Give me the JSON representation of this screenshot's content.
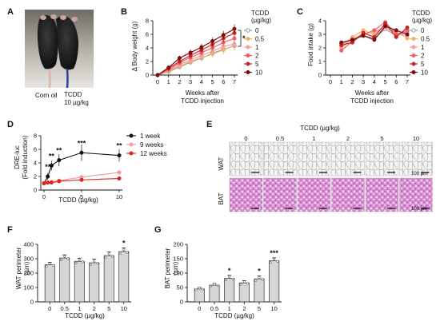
{
  "figure": {
    "colors": {
      "series_0": "#999999",
      "series_0_5": "#f2b16b",
      "series_1": "#f2a0a6",
      "series_2": "#f05f67",
      "series_5": "#c9251f",
      "series_10": "#7a0d12",
      "week1": "#111111",
      "week9": "#f29aa0",
      "week12": "#e2231a",
      "bar_fill": "#d6d6d6",
      "he_pink": "#d38ad0",
      "he_purple": "#6c2f8f"
    },
    "A": {
      "label": "A",
      "caption_left": "Corn oil",
      "caption_right_1": "TCDD",
      "caption_right_2": "10 µg/kg"
    },
    "B": {
      "label": "B",
      "ylabel": "Δ Body weight (g)",
      "xlabel_1": "Weeks after",
      "xlabel_2": "TCDD injection",
      "legend_title_1": "TCDD",
      "legend_title_2": "(µg/kg)",
      "star": "*"
    },
    "C": {
      "label": "C",
      "ylabel": "Food intake (g)",
      "xlabel_1": "Weeks after",
      "xlabel_2": "TCDD injection",
      "legend_title_1": "TCDD",
      "legend_title_2": "(µg/kg)"
    },
    "D": {
      "label": "D",
      "ylabel_1": "DRE-luc",
      "ylabel_2": "(Fold induction)",
      "xlabel": "TCDD (µg/kg)"
    },
    "E": {
      "label": "E",
      "header": "TCDD (µg/kg)",
      "doses": [
        "0",
        "0.5",
        "1",
        "2",
        "5",
        "10"
      ],
      "row_wat": "WAT",
      "row_bat": "BAT",
      "scale_wat": "100 µm",
      "scale_bat": "100 µm"
    },
    "F": {
      "label": "F",
      "ylabel_1": "WAT perimeter",
      "ylabel_2": "(µm)",
      "xlabel": "TCDD (µg/kg)"
    },
    "G": {
      "label": "G",
      "ylabel_1": "BAT perimeter",
      "ylabel_2": "(µm)",
      "xlabel": "TCDD (µg/kg)"
    }
  },
  "chart_data": [
    {
      "panel": "B",
      "type": "line",
      "x": [
        0,
        1,
        2,
        3,
        4,
        5,
        6,
        7
      ],
      "xticks": [
        "0",
        "1",
        "2",
        "3",
        "4",
        "5",
        "6",
        "7"
      ],
      "ylim": [
        0,
        8
      ],
      "yticks": [
        0,
        2,
        4,
        6,
        8
      ],
      "legend_placement": "right",
      "series": [
        {
          "name": "0",
          "color_key": "series_0",
          "values": [
            0,
            0.5,
            1.2,
            1.9,
            2.5,
            3.2,
            3.8,
            4.3
          ]
        },
        {
          "name": "0.5",
          "color_key": "series_0_5",
          "values": [
            0,
            0.6,
            1.3,
            2.0,
            2.6,
            3.1,
            3.7,
            4.4
          ]
        },
        {
          "name": "1",
          "color_key": "series_1",
          "values": [
            0,
            0.7,
            1.5,
            2.2,
            2.9,
            3.5,
            4.2,
            4.6
          ]
        },
        {
          "name": "2",
          "color_key": "series_2",
          "values": [
            0,
            0.8,
            1.8,
            2.6,
            3.3,
            4.0,
            4.8,
            5.4
          ]
        },
        {
          "name": "5",
          "color_key": "series_5",
          "values": [
            0,
            1.0,
            2.0,
            2.9,
            3.7,
            4.5,
            5.4,
            6.2
          ]
        },
        {
          "name": "10",
          "color_key": "series_10",
          "values": [
            0,
            1.1,
            2.5,
            3.3,
            4.1,
            5.0,
            5.9,
            6.8
          ]
        }
      ]
    },
    {
      "panel": "C",
      "type": "line",
      "x": [
        1,
        2,
        3,
        4,
        5,
        6,
        7
      ],
      "xticks": [
        "0",
        "1",
        "2",
        "3",
        "4",
        "5",
        "6",
        "7"
      ],
      "ylim": [
        0,
        4
      ],
      "yticks": [
        0,
        1,
        2,
        3,
        4
      ],
      "legend_placement": "right",
      "series": [
        {
          "name": "0",
          "color_key": "series_0",
          "values": [
            2.3,
            2.6,
            2.9,
            2.7,
            3.4,
            2.9,
            3.2
          ]
        },
        {
          "name": "0.5",
          "color_key": "series_0_5",
          "values": [
            2.1,
            2.8,
            3.3,
            3.0,
            3.7,
            3.2,
            2.7
          ]
        },
        {
          "name": "1",
          "color_key": "series_1",
          "values": [
            2.0,
            2.7,
            3.0,
            3.2,
            3.5,
            3.1,
            2.9
          ]
        },
        {
          "name": "2",
          "color_key": "series_2",
          "values": [
            1.8,
            2.5,
            3.0,
            3.3,
            3.9,
            3.0,
            3.3
          ]
        },
        {
          "name": "5",
          "color_key": "series_5",
          "values": [
            2.2,
            2.4,
            3.1,
            2.8,
            3.8,
            2.8,
            3.5
          ]
        },
        {
          "name": "10",
          "color_key": "series_10",
          "values": [
            2.4,
            2.6,
            2.9,
            2.6,
            3.6,
            3.3,
            3.0
          ]
        }
      ]
    },
    {
      "panel": "D",
      "type": "line",
      "x": [
        0,
        0.5,
        1,
        2,
        5,
        10
      ],
      "xticks": [
        0,
        5,
        10
      ],
      "ylim": [
        0,
        8
      ],
      "yticks": [
        0,
        2,
        4,
        6,
        8
      ],
      "legend_placement": "top-right",
      "series": [
        {
          "name": "1 week",
          "color_key": "week1",
          "values": [
            1.0,
            2.0,
            3.6,
            4.4,
            5.5,
            5.1
          ],
          "stars": [
            "",
            "**",
            "**",
            "**",
            "***",
            "**"
          ]
        },
        {
          "name": "9 weeks",
          "color_key": "week9",
          "values": [
            1.0,
            1.1,
            1.2,
            1.4,
            1.9,
            2.6
          ]
        },
        {
          "name": "12 weeks",
          "color_key": "week12",
          "values": [
            1.0,
            1.1,
            1.1,
            1.3,
            1.5,
            1.7
          ]
        }
      ]
    },
    {
      "panel": "F",
      "type": "bar",
      "categories": [
        "0",
        "0.5",
        "1",
        "2",
        "5",
        "10"
      ],
      "values": [
        258,
        305,
        282,
        272,
        322,
        350
      ],
      "errors": [
        18,
        22,
        20,
        25,
        25,
        25
      ],
      "stars": [
        "",
        "",
        "",
        "",
        "",
        "*"
      ],
      "ylim": [
        0,
        400
      ],
      "yticks": [
        0,
        100,
        200,
        300,
        400
      ]
    },
    {
      "panel": "G",
      "type": "bar",
      "categories": [
        "0",
        "0.5",
        "1",
        "2",
        "5",
        "10"
      ],
      "values": [
        45,
        58,
        82,
        66,
        80,
        143
      ],
      "errors": [
        5,
        6,
        10,
        8,
        10,
        10
      ],
      "stars": [
        "",
        "",
        "*",
        "",
        "*",
        "***"
      ],
      "ylim": [
        0,
        200
      ],
      "yticks": [
        0,
        50,
        100,
        150,
        200
      ]
    }
  ]
}
